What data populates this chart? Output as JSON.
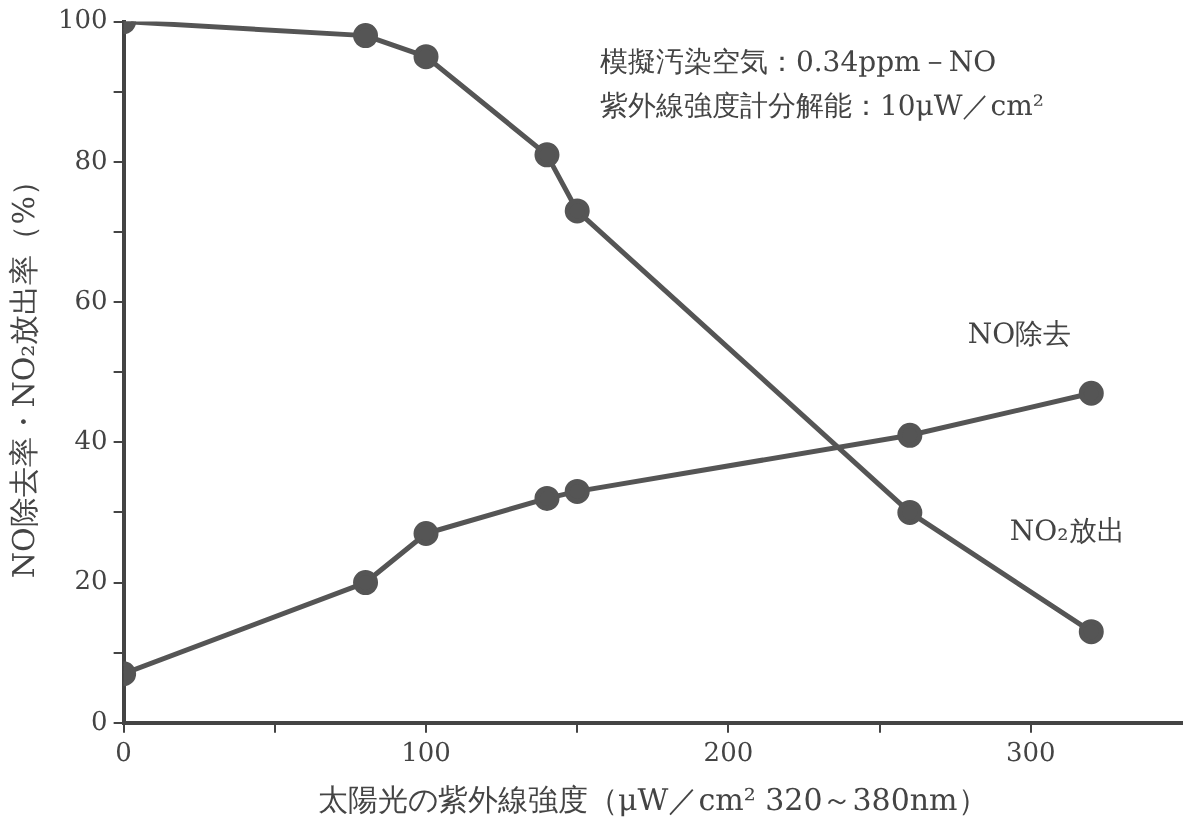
{
  "chart_data": {
    "type": "line",
    "xlabel": "太陽光の紫外線強度（μW／cm² 320～380nm）",
    "ylabel": "NO除去率・NO₂放出率（%）",
    "annotations": [
      "模擬汚染空気：0.34ppm－NO",
      "紫外線強度計分解能：10μW／cm²"
    ],
    "x": [
      0,
      80,
      100,
      140,
      150,
      260,
      320
    ],
    "series": [
      {
        "name": "NO除去",
        "color": "#555555",
        "values": [
          7,
          20,
          27,
          32,
          33,
          41,
          47
        ]
      },
      {
        "name": "NO₂放出",
        "color": "#555555",
        "values": [
          100,
          98,
          95,
          81,
          73,
          30,
          13
        ]
      }
    ],
    "xlim": [
      0,
      350
    ],
    "xticks": [
      0,
      {
        "value": 50,
        "label": null
      },
      100,
      {
        "value": 150,
        "label": null
      },
      200,
      {
        "value": 250,
        "label": null
      },
      300
    ],
    "ylim": [
      0,
      100
    ],
    "yticks": [
      0,
      {
        "value": 10,
        "label": null
      },
      20,
      {
        "value": 30,
        "label": null
      },
      40,
      {
        "value": 50,
        "label": null
      },
      60,
      {
        "value": 70,
        "label": null
      },
      80,
      {
        "value": 90,
        "label": null
      },
      100
    ],
    "grid": false,
    "legend": false,
    "marker": "circle",
    "line_style": "solid"
  }
}
